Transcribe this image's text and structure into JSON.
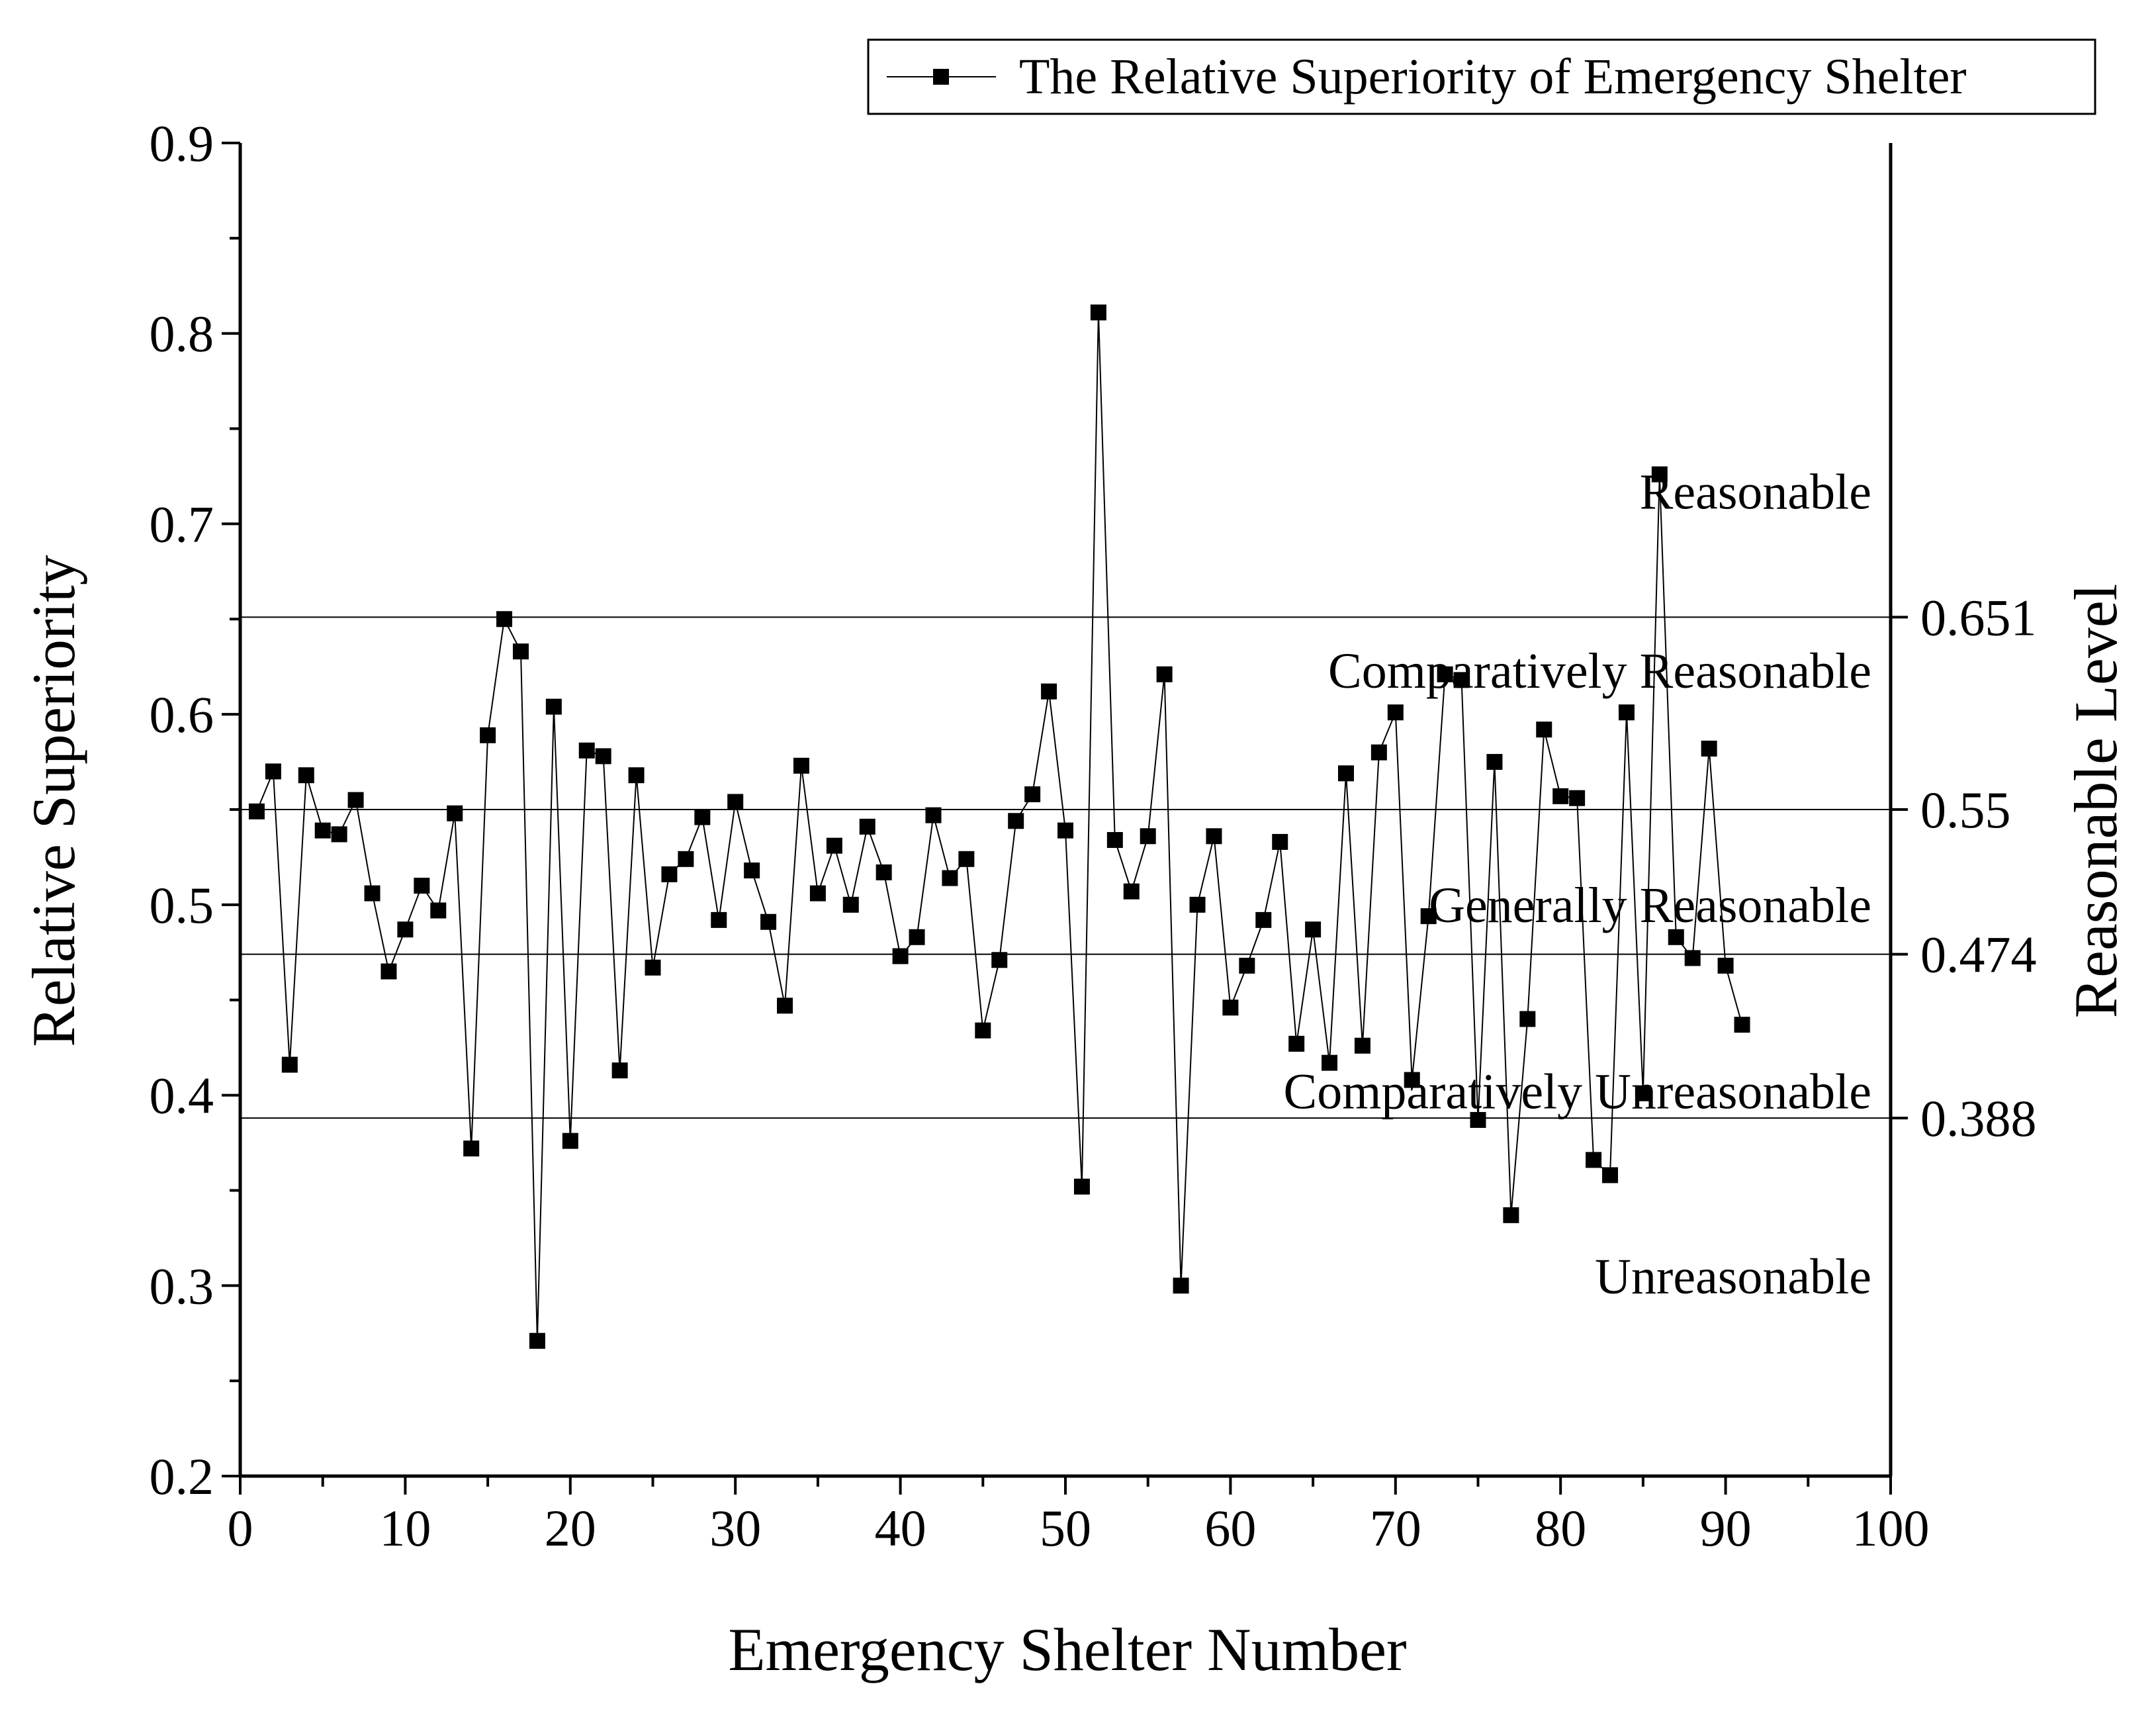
{
  "chart_data": {
    "type": "line",
    "title": "",
    "xlabel": "Emergency Shelter Number",
    "ylabel": "Relative Superiority",
    "y2label": "Reasonable Level",
    "xlim": [
      0,
      100
    ],
    "ylim": [
      0.2,
      0.9
    ],
    "xticks": [
      0,
      10,
      20,
      30,
      40,
      50,
      60,
      70,
      80,
      90,
      100
    ],
    "yticks": [
      0.2,
      0.3,
      0.4,
      0.5,
      0.6,
      0.7,
      0.8,
      0.9
    ],
    "xtick_labels": [
      "0",
      "10",
      "20",
      "30",
      "40",
      "50",
      "60",
      "70",
      "80",
      "90",
      "100"
    ],
    "ytick_labels": [
      "0.2",
      "0.3",
      "0.4",
      "0.5",
      "0.6",
      "0.7",
      "0.8",
      "0.9"
    ],
    "legend": {
      "label": "The Relative Superiority of Emergency Shelter",
      "position": "top-right"
    },
    "thresholds": [
      {
        "value": 0.651,
        "label": "0.651"
      },
      {
        "value": 0.55,
        "label": "0.55"
      },
      {
        "value": 0.474,
        "label": "0.474"
      },
      {
        "value": 0.388,
        "label": "0.388"
      }
    ],
    "zones": [
      {
        "label": "Reasonable",
        "anchor_y": 0.708
      },
      {
        "label": "Comparatively Reasonable",
        "anchor_y": 0.614
      },
      {
        "label": "Generally Reasonable",
        "anchor_y": 0.491
      },
      {
        "label": "Comparatively Unreasonable",
        "anchor_y": 0.393
      },
      {
        "label": "Unreasonable",
        "anchor_y": 0.296
      }
    ],
    "series": [
      {
        "name": "The Relative Superiority of Emergency Shelter",
        "marker": "square",
        "x": [
          1,
          2,
          3,
          4,
          5,
          6,
          7,
          8,
          9,
          10,
          11,
          12,
          13,
          14,
          15,
          16,
          17,
          18,
          19,
          20,
          21,
          22,
          23,
          24,
          25,
          26,
          27,
          28,
          29,
          30,
          31,
          32,
          33,
          34,
          35,
          36,
          37,
          38,
          39,
          40,
          41,
          42,
          43,
          44,
          45,
          46,
          47,
          48,
          49,
          50,
          51,
          52,
          53,
          54,
          55,
          56,
          57,
          58,
          59,
          60,
          61,
          62,
          63,
          64,
          65,
          66,
          67,
          68,
          69,
          70,
          71,
          72,
          73,
          74,
          75,
          76,
          77,
          78,
          79,
          80,
          81,
          82,
          83,
          84,
          85,
          86,
          87,
          88,
          89,
          90,
          91
        ],
        "values": [
          0.549,
          0.57,
          0.416,
          0.568,
          0.539,
          0.537,
          0.555,
          0.506,
          0.465,
          0.487,
          0.51,
          0.497,
          0.548,
          0.372,
          0.589,
          0.65,
          0.633,
          0.271,
          0.604,
          0.376,
          0.581,
          0.578,
          0.413,
          0.568,
          0.467,
          0.516,
          0.524,
          0.546,
          0.492,
          0.554,
          0.518,
          0.491,
          0.447,
          0.573,
          0.506,
          0.531,
          0.5,
          0.541,
          0.517,
          0.473,
          0.483,
          0.547,
          0.514,
          0.524,
          0.434,
          0.471,
          0.544,
          0.558,
          0.612,
          0.539,
          0.352,
          0.811,
          0.534,
          0.507,
          0.536,
          0.621,
          0.3,
          0.5,
          0.536,
          0.446,
          0.468,
          0.492,
          0.533,
          0.427,
          0.487,
          0.417,
          0.569,
          0.426,
          0.58,
          0.601,
          0.408,
          0.494,
          0.621,
          0.618,
          0.387,
          0.575,
          0.337,
          0.44,
          0.592,
          0.557,
          0.556,
          0.366,
          0.358,
          0.601,
          0.401,
          0.726,
          0.483,
          0.472,
          0.582,
          0.468,
          0.437
        ]
      }
    ]
  }
}
